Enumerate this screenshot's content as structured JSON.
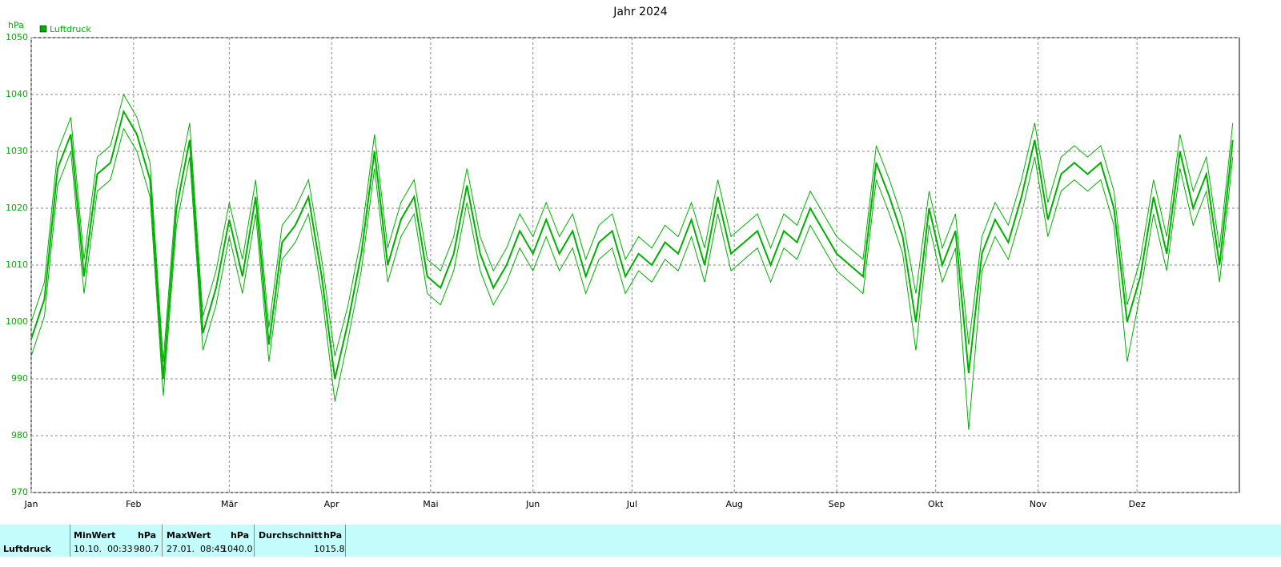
{
  "chart_data": {
    "type": "line",
    "title": "Jahr 2024",
    "y_unit": "hPa",
    "x": [
      0,
      4,
      8,
      12,
      16,
      20,
      24,
      28,
      32,
      36,
      40,
      44,
      48,
      52,
      56,
      60,
      64,
      68,
      72,
      76,
      80,
      84,
      88,
      92,
      96,
      100,
      104,
      108,
      112,
      116,
      120,
      124,
      128,
      132,
      136,
      140,
      144,
      148,
      152,
      156,
      160,
      164,
      168,
      172,
      176,
      180,
      184,
      188,
      192,
      196,
      200,
      204,
      208,
      212,
      216,
      220,
      224,
      228,
      232,
      236,
      240,
      244,
      248,
      252,
      256,
      260,
      264,
      268,
      272,
      276,
      280,
      284,
      288,
      292,
      296,
      300,
      304,
      308,
      312,
      316,
      320,
      324,
      328,
      332,
      336,
      340,
      344,
      348,
      352,
      356,
      360,
      364
    ],
    "series": [
      {
        "name": "Luftdruck",
        "color": "#00b000",
        "values": [
          997,
          1004,
          1027,
          1033,
          1008,
          1026,
          1028,
          1037,
          1033,
          1025,
          990,
          1020,
          1032,
          998,
          1006,
          1018,
          1008,
          1022,
          996,
          1014,
          1017,
          1022,
          1008,
          990,
          1000,
          1012,
          1030,
          1010,
          1018,
          1022,
          1008,
          1006,
          1012,
          1024,
          1012,
          1006,
          1010,
          1016,
          1012,
          1018,
          1012,
          1016,
          1008,
          1014,
          1016,
          1008,
          1012,
          1010,
          1014,
          1012,
          1018,
          1010,
          1022,
          1012,
          1014,
          1016,
          1010,
          1016,
          1014,
          1020,
          1016,
          1012,
          1010,
          1008,
          1028,
          1022,
          1015,
          1000,
          1020,
          1010,
          1016,
          991,
          1012,
          1018,
          1014,
          1022,
          1032,
          1018,
          1026,
          1028,
          1026,
          1028,
          1020,
          1000,
          1008,
          1022,
          1012,
          1030,
          1020,
          1026,
          1010,
          1032
        ],
        "low": [
          994,
          1001,
          1024,
          1030,
          1005,
          1023,
          1025,
          1034,
          1030,
          1022,
          987,
          1017,
          1029,
          995,
          1003,
          1015,
          1005,
          1019,
          993,
          1011,
          1014,
          1019,
          1005,
          986,
          997,
          1009,
          1027,
          1007,
          1015,
          1019,
          1005,
          1003,
          1009,
          1021,
          1009,
          1003,
          1007,
          1013,
          1009,
          1015,
          1009,
          1013,
          1005,
          1011,
          1013,
          1005,
          1009,
          1007,
          1011,
          1009,
          1015,
          1007,
          1019,
          1009,
          1011,
          1013,
          1007,
          1013,
          1011,
          1017,
          1013,
          1009,
          1007,
          1005,
          1025,
          1019,
          1012,
          995,
          1017,
          1007,
          1013,
          981,
          1009,
          1015,
          1011,
          1019,
          1029,
          1015,
          1023,
          1025,
          1023,
          1025,
          1017,
          993,
          1005,
          1019,
          1009,
          1027,
          1017,
          1023,
          1007,
          1029
        ],
        "high": [
          1000,
          1007,
          1030,
          1036,
          1011,
          1029,
          1031,
          1040,
          1036,
          1028,
          993,
          1023,
          1035,
          1001,
          1009,
          1021,
          1011,
          1025,
          999,
          1017,
          1020,
          1025,
          1011,
          994,
          1003,
          1015,
          1033,
          1013,
          1021,
          1025,
          1011,
          1009,
          1015,
          1027,
          1015,
          1009,
          1013,
          1019,
          1015,
          1021,
          1015,
          1019,
          1011,
          1017,
          1019,
          1011,
          1015,
          1013,
          1017,
          1015,
          1021,
          1013,
          1025,
          1015,
          1017,
          1019,
          1013,
          1019,
          1017,
          1023,
          1019,
          1015,
          1013,
          1011,
          1031,
          1025,
          1018,
          1005,
          1023,
          1013,
          1019,
          996,
          1015,
          1021,
          1017,
          1025,
          1035,
          1021,
          1029,
          1031,
          1029,
          1031,
          1023,
          1003,
          1011,
          1025,
          1015,
          1033,
          1023,
          1029,
          1013,
          1035
        ]
      }
    ],
    "xlim": [
      0,
      366
    ],
    "xticks": [
      {
        "value": 0,
        "label": "Jan"
      },
      {
        "value": 31,
        "label": "Feb"
      },
      {
        "value": 60,
        "label": "Mär"
      },
      {
        "value": 91,
        "label": "Apr"
      },
      {
        "value": 121,
        "label": "Mai"
      },
      {
        "value": 152,
        "label": "Jun"
      },
      {
        "value": 182,
        "label": "Jul"
      },
      {
        "value": 213,
        "label": "Aug"
      },
      {
        "value": 244,
        "label": "Sep"
      },
      {
        "value": 274,
        "label": "Okt"
      },
      {
        "value": 305,
        "label": "Nov"
      },
      {
        "value": 335,
        "label": "Dez"
      }
    ],
    "ylim": [
      970,
      1050
    ],
    "yticks": [
      970,
      980,
      990,
      1000,
      1010,
      1020,
      1030,
      1040,
      1050
    ],
    "grid": true,
    "legend": "top-left"
  },
  "stats": {
    "row_label": "Luftdruck",
    "min": {
      "header": "MinWert",
      "unit": "hPa",
      "time": "10.10.  00:33",
      "value": "980.7"
    },
    "max": {
      "header": "MaxWert",
      "unit": "hPa",
      "time": "27.01.  08:45",
      "value": "1040.0"
    },
    "mean": {
      "header": "Durchschnitt",
      "unit": "hPa",
      "value": "1015.8"
    }
  }
}
